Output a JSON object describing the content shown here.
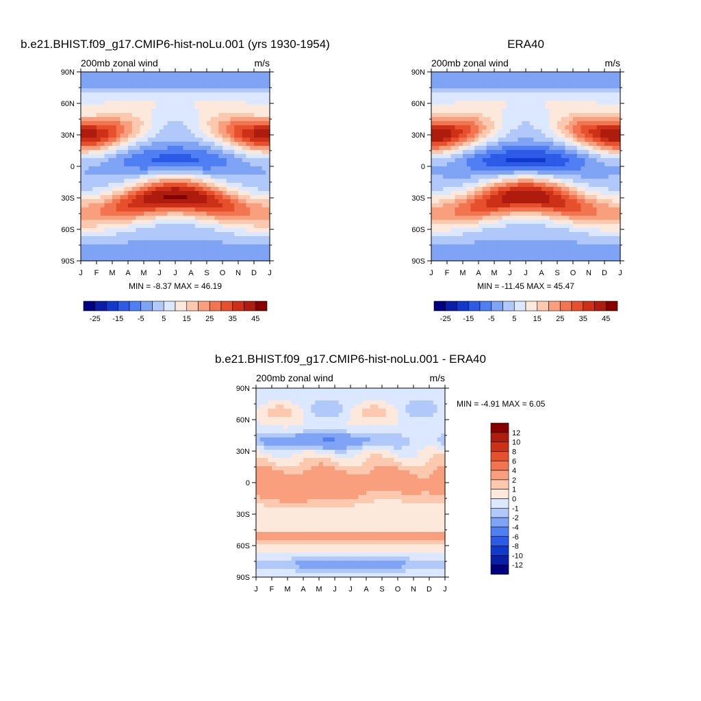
{
  "chart_data": [
    {
      "type": "heatmap",
      "title": "b.e21.BHIST.f09_g17.CMIP6-hist-noLu.001 (yrs 1930-1954)",
      "left_label": "200mb zonal wind",
      "right_label": "m/s",
      "x_ticks": [
        "J",
        "F",
        "M",
        "A",
        "M",
        "J",
        "J",
        "A",
        "S",
        "O",
        "N",
        "D",
        "J"
      ],
      "y_ticks": [
        "90N",
        "60N",
        "30N",
        "0",
        "30S",
        "60S",
        "90S"
      ],
      "stats": "MIN =  -8.37 MAX =  46.19",
      "colorbar": {
        "orientation": "horizontal",
        "levels": [
          -30,
          -25,
          -20,
          -15,
          -10,
          -5,
          0,
          5,
          10,
          15,
          20,
          25,
          30,
          35,
          40,
          45
        ],
        "labels": [
          "-25",
          "-15",
          "-5",
          "5",
          "15",
          "25",
          "35",
          "45"
        ]
      },
      "field": {
        "months": [
          "Jan",
          "Feb",
          "Mar",
          "Apr",
          "May",
          "Jun",
          "Jul",
          "Aug",
          "Sep",
          "Oct",
          "Nov",
          "Dec",
          "Jan"
        ],
        "lat": [
          90,
          80,
          70,
          60,
          50,
          40,
          30,
          20,
          10,
          0,
          -10,
          -20,
          -30,
          -40,
          -50,
          -60,
          -70,
          -80,
          -90
        ],
        "jet_n_peak": 43,
        "jet_s_peak": 46,
        "trop_min": -8
      }
    },
    {
      "type": "heatmap",
      "title": "ERA40",
      "left_label": "200mb zonal wind",
      "right_label": "m/s",
      "x_ticks": [
        "J",
        "F",
        "M",
        "A",
        "M",
        "J",
        "J",
        "A",
        "S",
        "O",
        "N",
        "D",
        "J"
      ],
      "y_ticks": [
        "90N",
        "60N",
        "30N",
        "0",
        "30S",
        "60S",
        "90S"
      ],
      "stats": "MIN = -11.45 MAX =  45.47",
      "colorbar": {
        "orientation": "horizontal",
        "levels": [
          -30,
          -25,
          -20,
          -15,
          -10,
          -5,
          0,
          5,
          10,
          15,
          20,
          25,
          30,
          35,
          40,
          45
        ],
        "labels": [
          "-25",
          "-15",
          "-5",
          "5",
          "15",
          "25",
          "35",
          "45"
        ]
      },
      "field": {
        "jet_n_peak": 45,
        "jet_s_peak": 44,
        "trop_min": -11
      }
    },
    {
      "type": "heatmap",
      "title": "b.e21.BHIST.f09_g17.CMIP6-hist-noLu.001 - ERA40",
      "left_label": "200mb zonal wind",
      "right_label": "m/s",
      "x_ticks": [
        "J",
        "F",
        "M",
        "A",
        "M",
        "J",
        "J",
        "A",
        "S",
        "O",
        "N",
        "D",
        "J"
      ],
      "y_ticks": [
        "90N",
        "60N",
        "30N",
        "0",
        "30S",
        "60S",
        "90S"
      ],
      "stats": "MIN =  -4.91 MAX =   6.05",
      "colorbar": {
        "orientation": "vertical",
        "levels": [
          -14,
          -12,
          -10,
          -8,
          -6,
          -4,
          -2,
          -1,
          0,
          1,
          2,
          4,
          6,
          8,
          10,
          12,
          14
        ],
        "labels": [
          "12",
          "10",
          "8",
          "6",
          "4",
          "2",
          "1",
          "0",
          "-1",
          "-2",
          "-4",
          "-6",
          "-8",
          "-10",
          "-12"
        ]
      },
      "field": {
        "min": -4.91,
        "max": 6.05
      }
    }
  ],
  "palettes": {
    "wind16": [
      "#00007f",
      "#0a1fa8",
      "#1238cc",
      "#2d5ae6",
      "#4f7ff2",
      "#7fa3f5",
      "#b1c8fa",
      "#dbe8ff",
      "#fde8dc",
      "#fcc8ae",
      "#fa9f7d",
      "#f27550",
      "#e6502d",
      "#cc3016",
      "#ad1c0d",
      "#850000"
    ],
    "diff16": [
      "#00007f",
      "#0a1fa8",
      "#1238cc",
      "#2d5ae6",
      "#4f7ff2",
      "#7fa3f5",
      "#b1c8fa",
      "#dbe8ff",
      "#fde8dc",
      "#fcc8ae",
      "#fa9f7d",
      "#f27550",
      "#e6502d",
      "#cc3016",
      "#ad1c0d",
      "#850000"
    ]
  }
}
